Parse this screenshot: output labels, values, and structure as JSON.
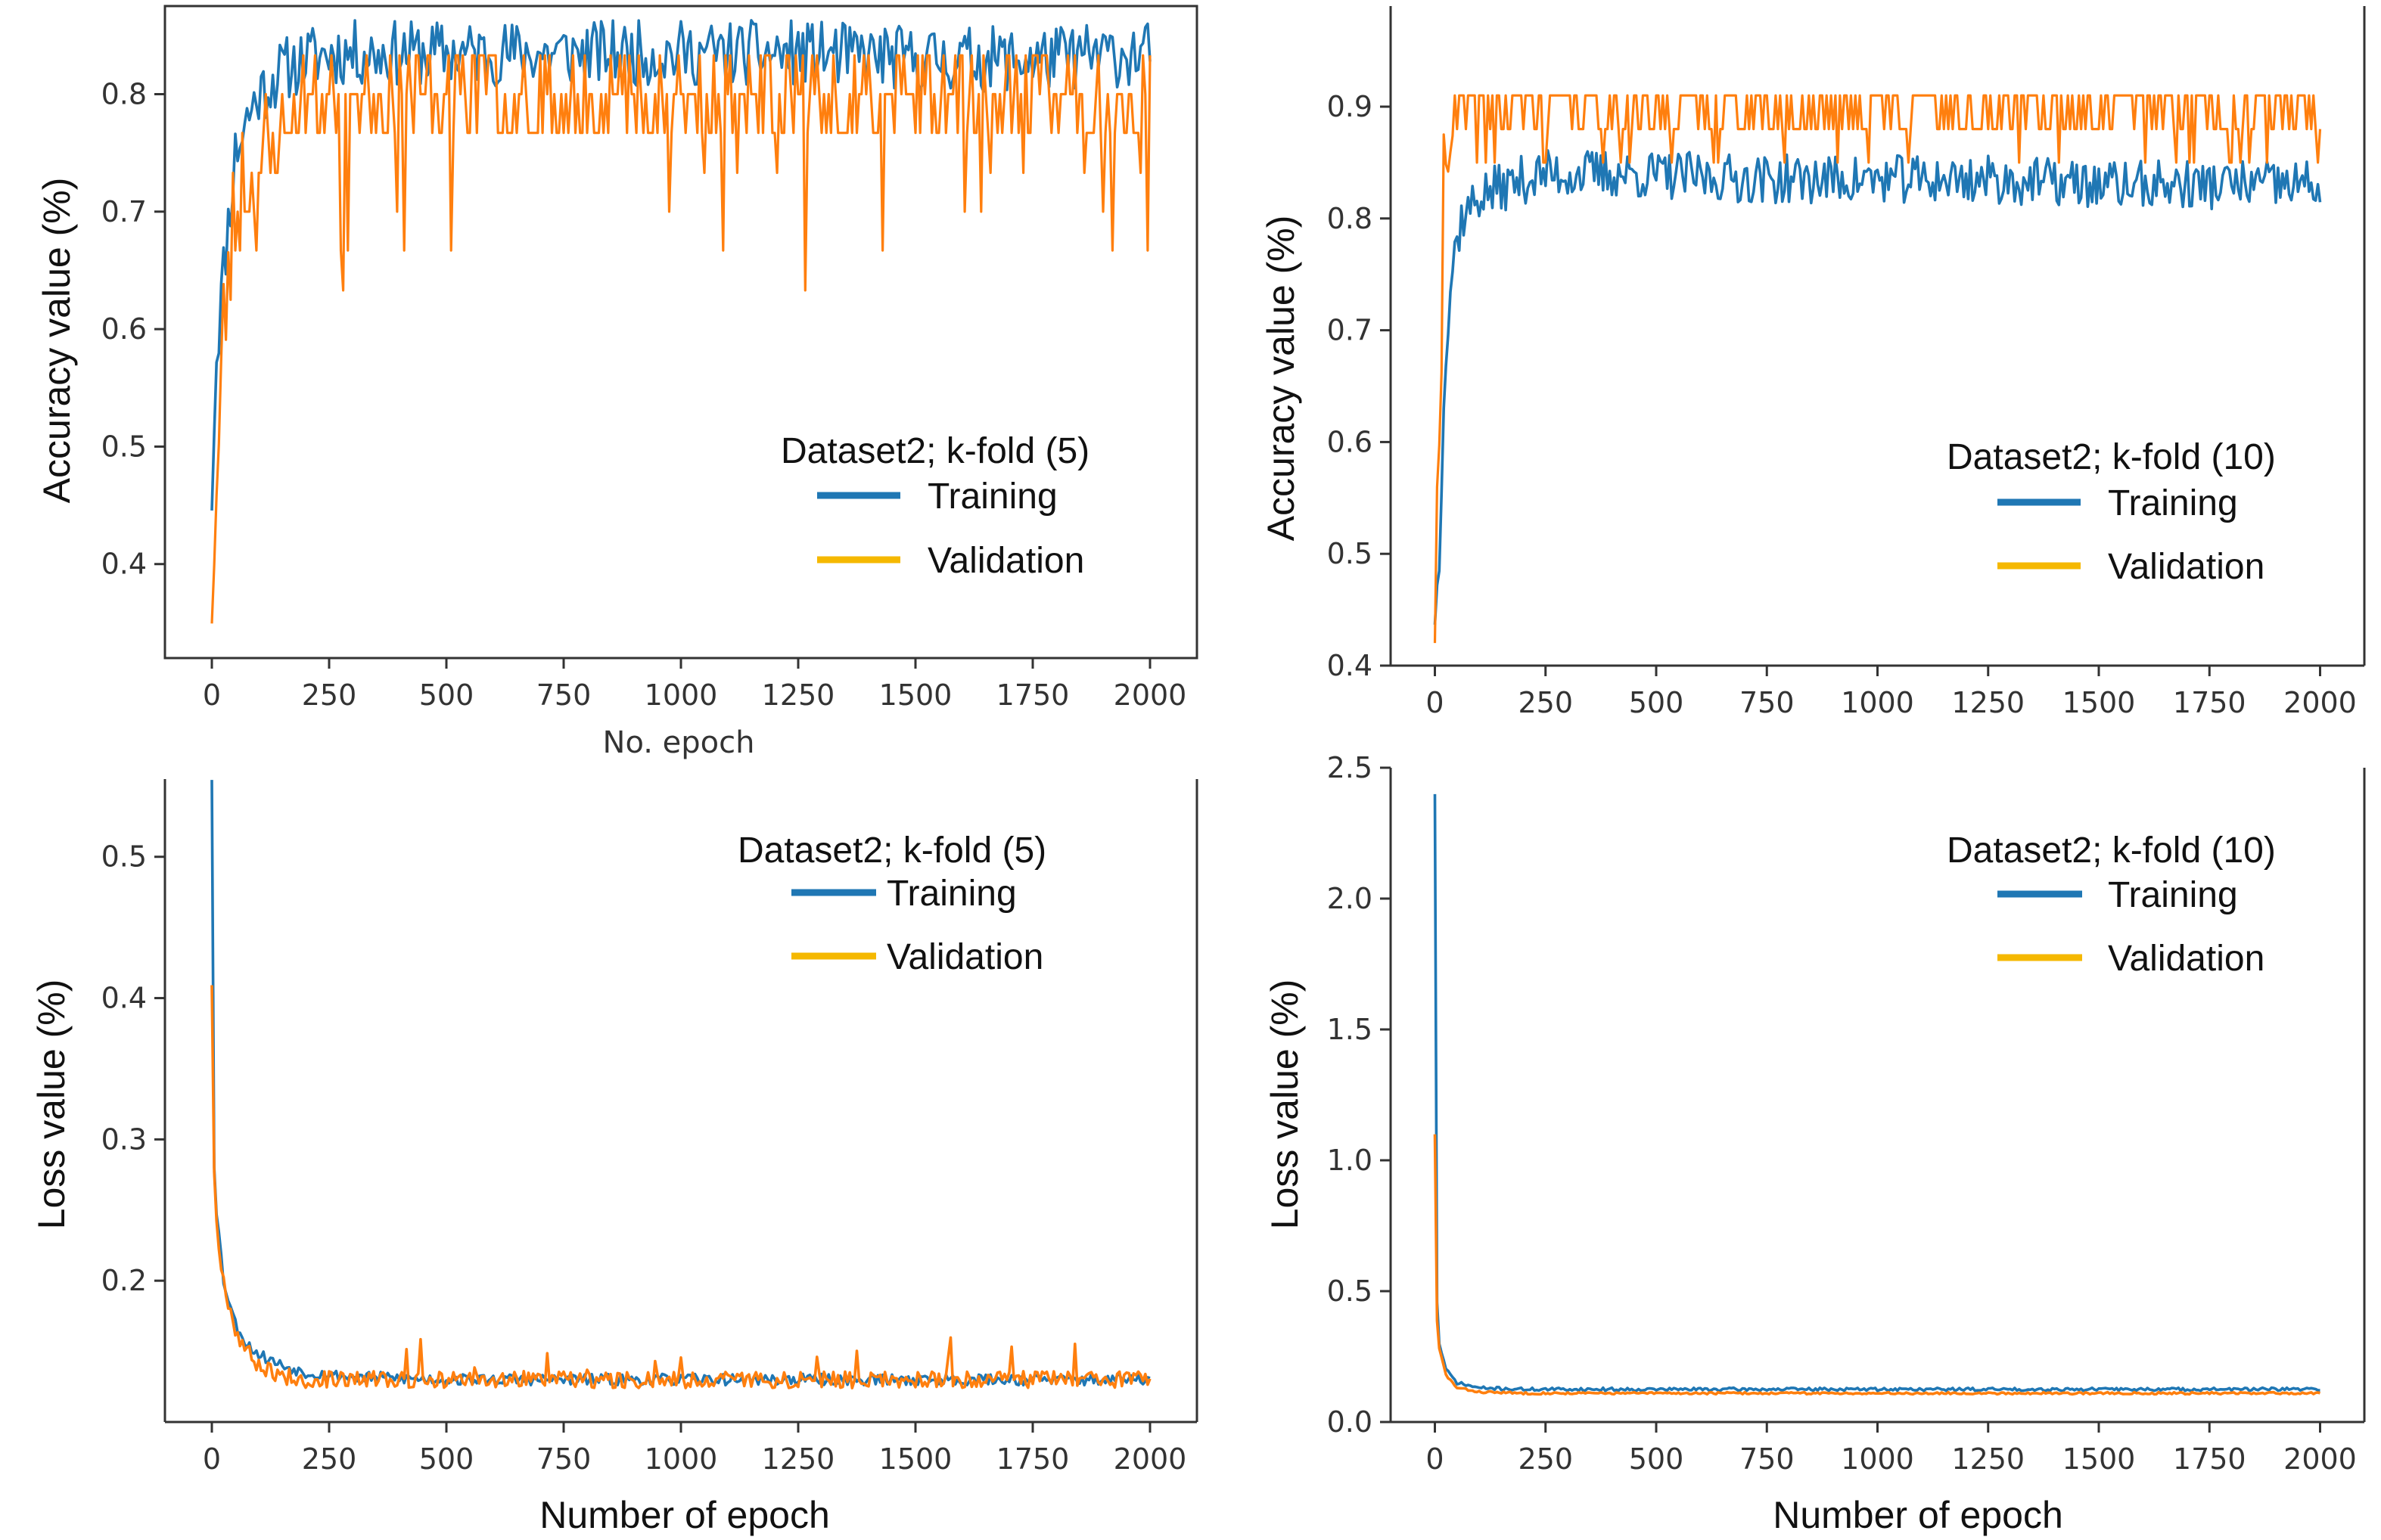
{
  "colors": {
    "training": "#1f77b4",
    "validation_line": "#ff7f0e",
    "validation_legend": "#f5b800",
    "axes": "#333333",
    "background": "#ffffff"
  },
  "chart_data": [
    {
      "id": "acc_k5",
      "type": "line",
      "title": "",
      "xlabel": "No. epoch",
      "ylabel": "Accuracy value (%)",
      "xlim": [
        -100,
        2100
      ],
      "ylim": [
        0.32,
        0.875
      ],
      "xticks": [
        0,
        250,
        500,
        750,
        1000,
        1250,
        1500,
        1750,
        2000
      ],
      "yticks": [
        0.4,
        0.5,
        0.6,
        0.7,
        0.8
      ],
      "grid": false,
      "legend": {
        "title": "Dataset2; k-fold (5)",
        "placement": "center-right"
      },
      "series": [
        {
          "name": "Training",
          "key": "training",
          "x": [
            0,
            10,
            25,
            50,
            75,
            100,
            150,
            200,
            250,
            300,
            500,
            750,
            1000,
            1250,
            1500,
            1750,
            2000
          ],
          "y": [
            0.45,
            0.58,
            0.65,
            0.75,
            0.78,
            0.8,
            0.82,
            0.83,
            0.835,
            0.835,
            0.835,
            0.835,
            0.835,
            0.835,
            0.83,
            0.83,
            0.835
          ],
          "noise": 0.028,
          "seed": 11
        },
        {
          "name": "Validation",
          "key": "validation",
          "x": [
            0,
            10,
            25,
            50,
            75,
            100,
            150,
            200,
            250,
            500,
            750,
            1000,
            1250,
            1500,
            1750,
            2000
          ],
          "y": [
            0.38,
            0.45,
            0.6,
            0.7,
            0.73,
            0.73,
            0.77,
            0.8,
            0.8,
            0.8,
            0.8,
            0.8,
            0.8,
            0.8,
            0.8,
            0.8
          ],
          "levels": [
            0.633,
            0.667,
            0.7,
            0.733,
            0.767,
            0.8,
            0.833,
            0.867
          ],
          "dips": 0.24,
          "seed": 23
        }
      ]
    },
    {
      "id": "acc_k10",
      "type": "line",
      "title": "",
      "xlabel": "",
      "ylabel": "Accuracy value (%)",
      "xlim": [
        -100,
        2100
      ],
      "ylim": [
        0.4,
        0.99
      ],
      "xticks": [
        0,
        250,
        500,
        750,
        1000,
        1250,
        1500,
        1750,
        2000
      ],
      "yticks": [
        0.4,
        0.5,
        0.6,
        0.7,
        0.8,
        0.9
      ],
      "grid": false,
      "legend": {
        "title": "Dataset2; k-fold (10)",
        "placement": "center-right"
      },
      "series": [
        {
          "name": "Training",
          "key": "training",
          "x": [
            0,
            10,
            20,
            40,
            60,
            100,
            200,
            250,
            400,
            750,
            1000,
            1250,
            1500,
            1750,
            2000
          ],
          "y": [
            0.44,
            0.5,
            0.65,
            0.76,
            0.8,
            0.82,
            0.835,
            0.84,
            0.84,
            0.835,
            0.835,
            0.835,
            0.83,
            0.83,
            0.83
          ],
          "noise": 0.022,
          "seed": 37
        },
        {
          "name": "Validation",
          "key": "validation",
          "x": [
            0,
            10,
            20,
            30,
            50,
            100,
            250,
            500,
            1000,
            1500,
            2000
          ],
          "y": [
            0.45,
            0.55,
            0.85,
            0.9,
            0.88,
            0.9,
            0.9,
            0.9,
            0.9,
            0.9,
            0.9
          ],
          "levels": [
            0.85,
            0.88,
            0.91
          ],
          "dips": 0.0,
          "seed": 41
        }
      ]
    },
    {
      "id": "loss_k5",
      "type": "line",
      "title": "",
      "xlabel": "Number of epoch",
      "ylabel": "Loss value (%)",
      "xlim": [
        -100,
        2100
      ],
      "ylim": [
        0.1,
        0.555
      ],
      "xticks": [
        0,
        250,
        500,
        750,
        1000,
        1250,
        1500,
        1750,
        2000
      ],
      "yticks": [
        0.2,
        0.3,
        0.4,
        0.5
      ],
      "grid": false,
      "legend": {
        "title": "Dataset2; k-fold (5)",
        "placement": "top-right"
      },
      "series": [
        {
          "name": "Training",
          "key": "training",
          "x": [
            0,
            2,
            10,
            25,
            50,
            75,
            100,
            150,
            200,
            300,
            500,
            750,
            1000,
            1250,
            1500,
            1750,
            2000
          ],
          "y": [
            0.555,
            0.3,
            0.25,
            0.2,
            0.17,
            0.155,
            0.148,
            0.14,
            0.135,
            0.132,
            0.13,
            0.13,
            0.13,
            0.13,
            0.13,
            0.13,
            0.13
          ],
          "noise": 0.004,
          "seed": 53
        },
        {
          "name": "Validation",
          "key": "validation",
          "x": [
            0,
            2,
            10,
            25,
            50,
            75,
            100,
            150,
            200,
            300,
            500,
            750,
            1000,
            1250,
            1500,
            1750,
            2000
          ],
          "y": [
            0.41,
            0.3,
            0.24,
            0.2,
            0.165,
            0.15,
            0.14,
            0.133,
            0.13,
            0.13,
            0.13,
            0.13,
            0.13,
            0.13,
            0.13,
            0.13,
            0.13
          ],
          "noise": 0.006,
          "spikes": 0.025,
          "seed": 67
        }
      ]
    },
    {
      "id": "loss_k10",
      "type": "line",
      "title": "",
      "xlabel": "Number of epoch",
      "ylabel": "Loss value (%)",
      "xlim": [
        -100,
        2100
      ],
      "ylim": [
        0.0,
        2.5
      ],
      "xticks": [
        0,
        250,
        500,
        750,
        1000,
        1250,
        1500,
        1750,
        2000
      ],
      "yticks": [
        0.0,
        0.5,
        1.0,
        1.5,
        2.0,
        2.5
      ],
      "grid": false,
      "legend": {
        "title": "Dataset2; k-fold (10)",
        "placement": "top-right"
      },
      "series": [
        {
          "name": "Training",
          "key": "training",
          "x": [
            0,
            2,
            10,
            25,
            50,
            100,
            200,
            500,
            1000,
            1500,
            2000
          ],
          "y": [
            2.4,
            0.55,
            0.3,
            0.2,
            0.15,
            0.13,
            0.125,
            0.125,
            0.125,
            0.125,
            0.125
          ],
          "noise": 0.006,
          "seed": 71
        },
        {
          "name": "Validation",
          "key": "validation",
          "x": [
            0,
            2,
            10,
            25,
            50,
            100,
            200,
            500,
            1000,
            1500,
            2000
          ],
          "y": [
            1.1,
            0.45,
            0.28,
            0.18,
            0.13,
            0.115,
            0.11,
            0.11,
            0.11,
            0.11,
            0.11
          ],
          "noise": 0.004,
          "seed": 83
        }
      ]
    }
  ]
}
